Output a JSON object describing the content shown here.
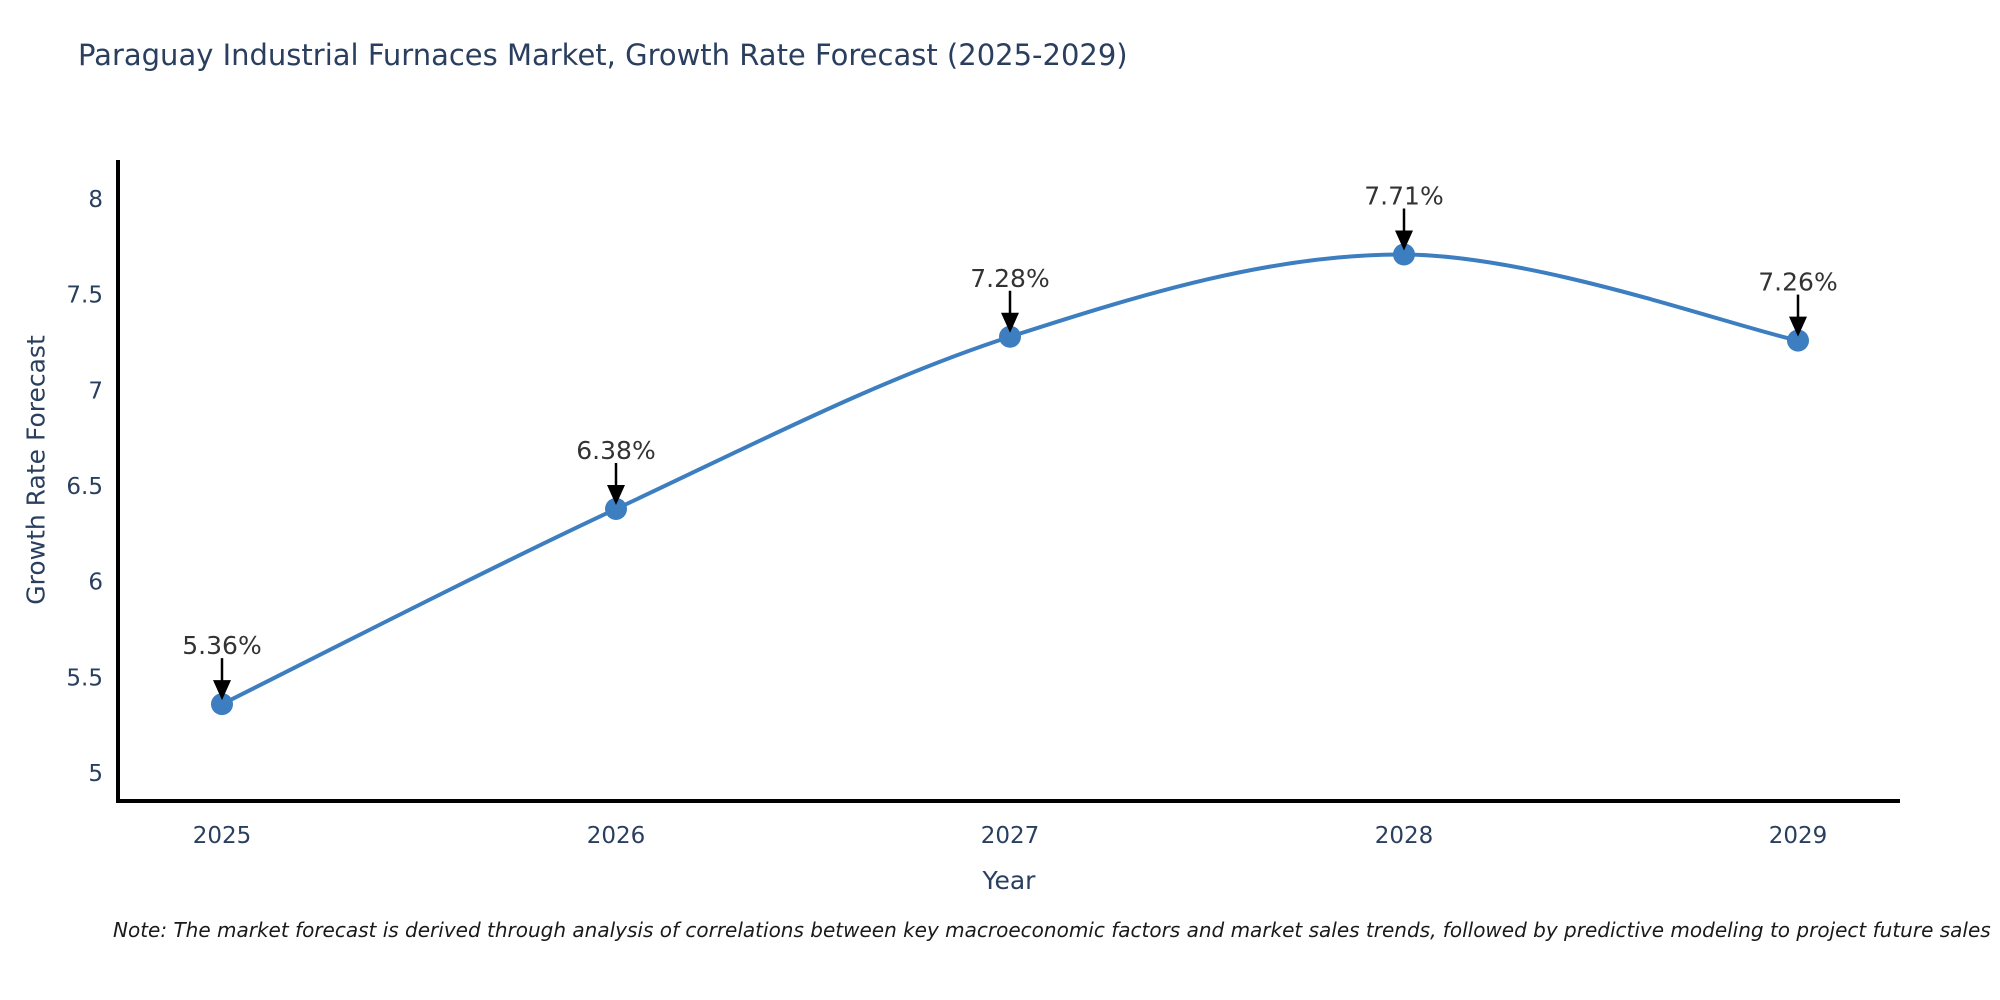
{
  "chart_data": {
    "type": "line",
    "title": "Paraguay Industrial Furnaces Market, Growth Rate Forecast (2025-2029)",
    "xlabel": "Year",
    "ylabel": "Growth Rate Forecast",
    "categories": [
      "2025",
      "2026",
      "2027",
      "2028",
      "2029"
    ],
    "values": [
      5.36,
      6.38,
      7.28,
      7.71,
      7.26
    ],
    "point_labels": [
      "5.36%",
      "6.38%",
      "7.28%",
      "7.71%",
      "7.26%"
    ],
    "yticks": [
      "5",
      "5.5",
      "6",
      "6.5",
      "7",
      "7.5",
      "8"
    ],
    "ytick_values": [
      5,
      5.5,
      6,
      6.5,
      7,
      7.5,
      8
    ],
    "ylim": [
      4.85,
      8.2
    ],
    "grid": false,
    "legend_position": "none",
    "colors": {
      "line": "#3c7ebf",
      "marker": "#3c7ebf",
      "axis": "#000000",
      "tick_label": "#2a3f5f",
      "annotation_text": "#333333",
      "annotation_arrow": "#000000"
    },
    "note": "Note: The market forecast is derived through analysis of correlations between key macroeconomic factors and market sales trends, followed by predictive modeling to project future sales"
  }
}
